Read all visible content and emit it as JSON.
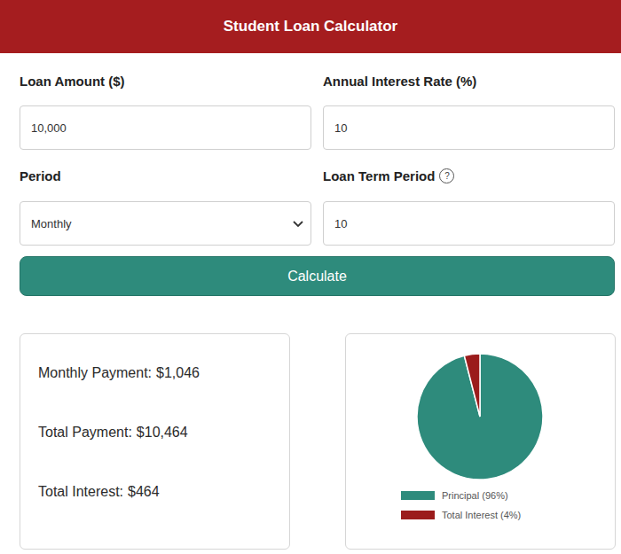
{
  "header": {
    "title": "Student Loan Calculator"
  },
  "form": {
    "fields": [
      {
        "label": "Loan Amount ($)",
        "value": "10,000"
      },
      {
        "label": "Annual Interest Rate (%)",
        "value": "10"
      },
      {
        "label": "Period",
        "value": "Monthly"
      },
      {
        "label": "Loan Term Period",
        "value": "10",
        "help": "?"
      }
    ],
    "button": "Calculate"
  },
  "results": [
    {
      "label": "Monthly Payment:",
      "value": "$1,046"
    },
    {
      "label": "Total Payment:",
      "value": "$10,464"
    },
    {
      "label": "Total Interest:",
      "value": "$464"
    }
  ],
  "chart_data": {
    "type": "pie",
    "categories": [
      "Principal (96%)",
      "Total Interest (4%)"
    ],
    "values": [
      96,
      4
    ],
    "colors": [
      "#2e8b7c",
      "#9b1c1c"
    ],
    "legend": "bottom"
  }
}
